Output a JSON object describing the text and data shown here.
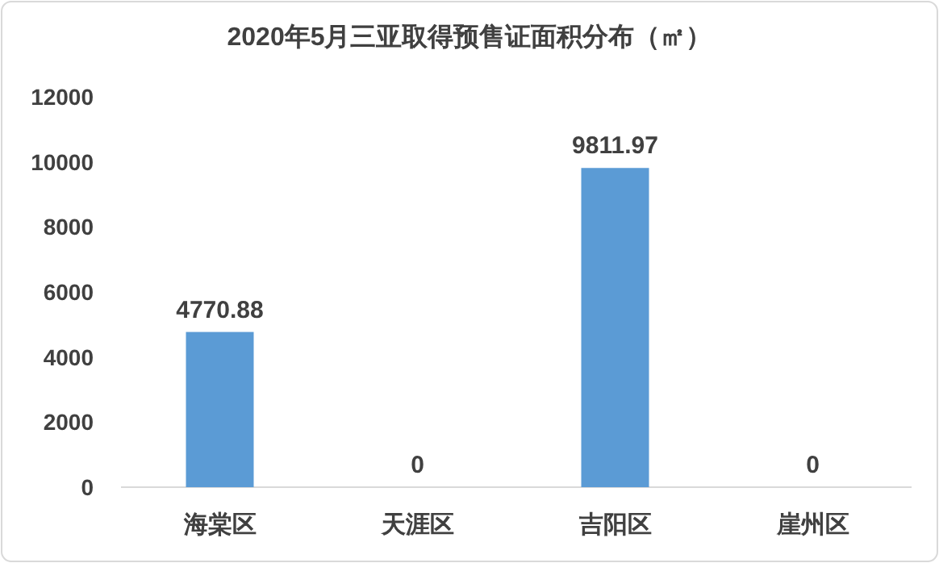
{
  "chart_data": {
    "type": "bar",
    "title": "2020年5月三亚取得预售证面积分布（㎡）",
    "categories": [
      "海棠区",
      "天涯区",
      "吉阳区",
      "崖州区"
    ],
    "values": [
      4770.88,
      0,
      9811.97,
      0
    ],
    "color": "#5b9bd5",
    "ylim": [
      0,
      12000
    ],
    "yticks": [
      0,
      2000,
      4000,
      6000,
      8000,
      10000,
      12000
    ],
    "data_labels": true
  }
}
